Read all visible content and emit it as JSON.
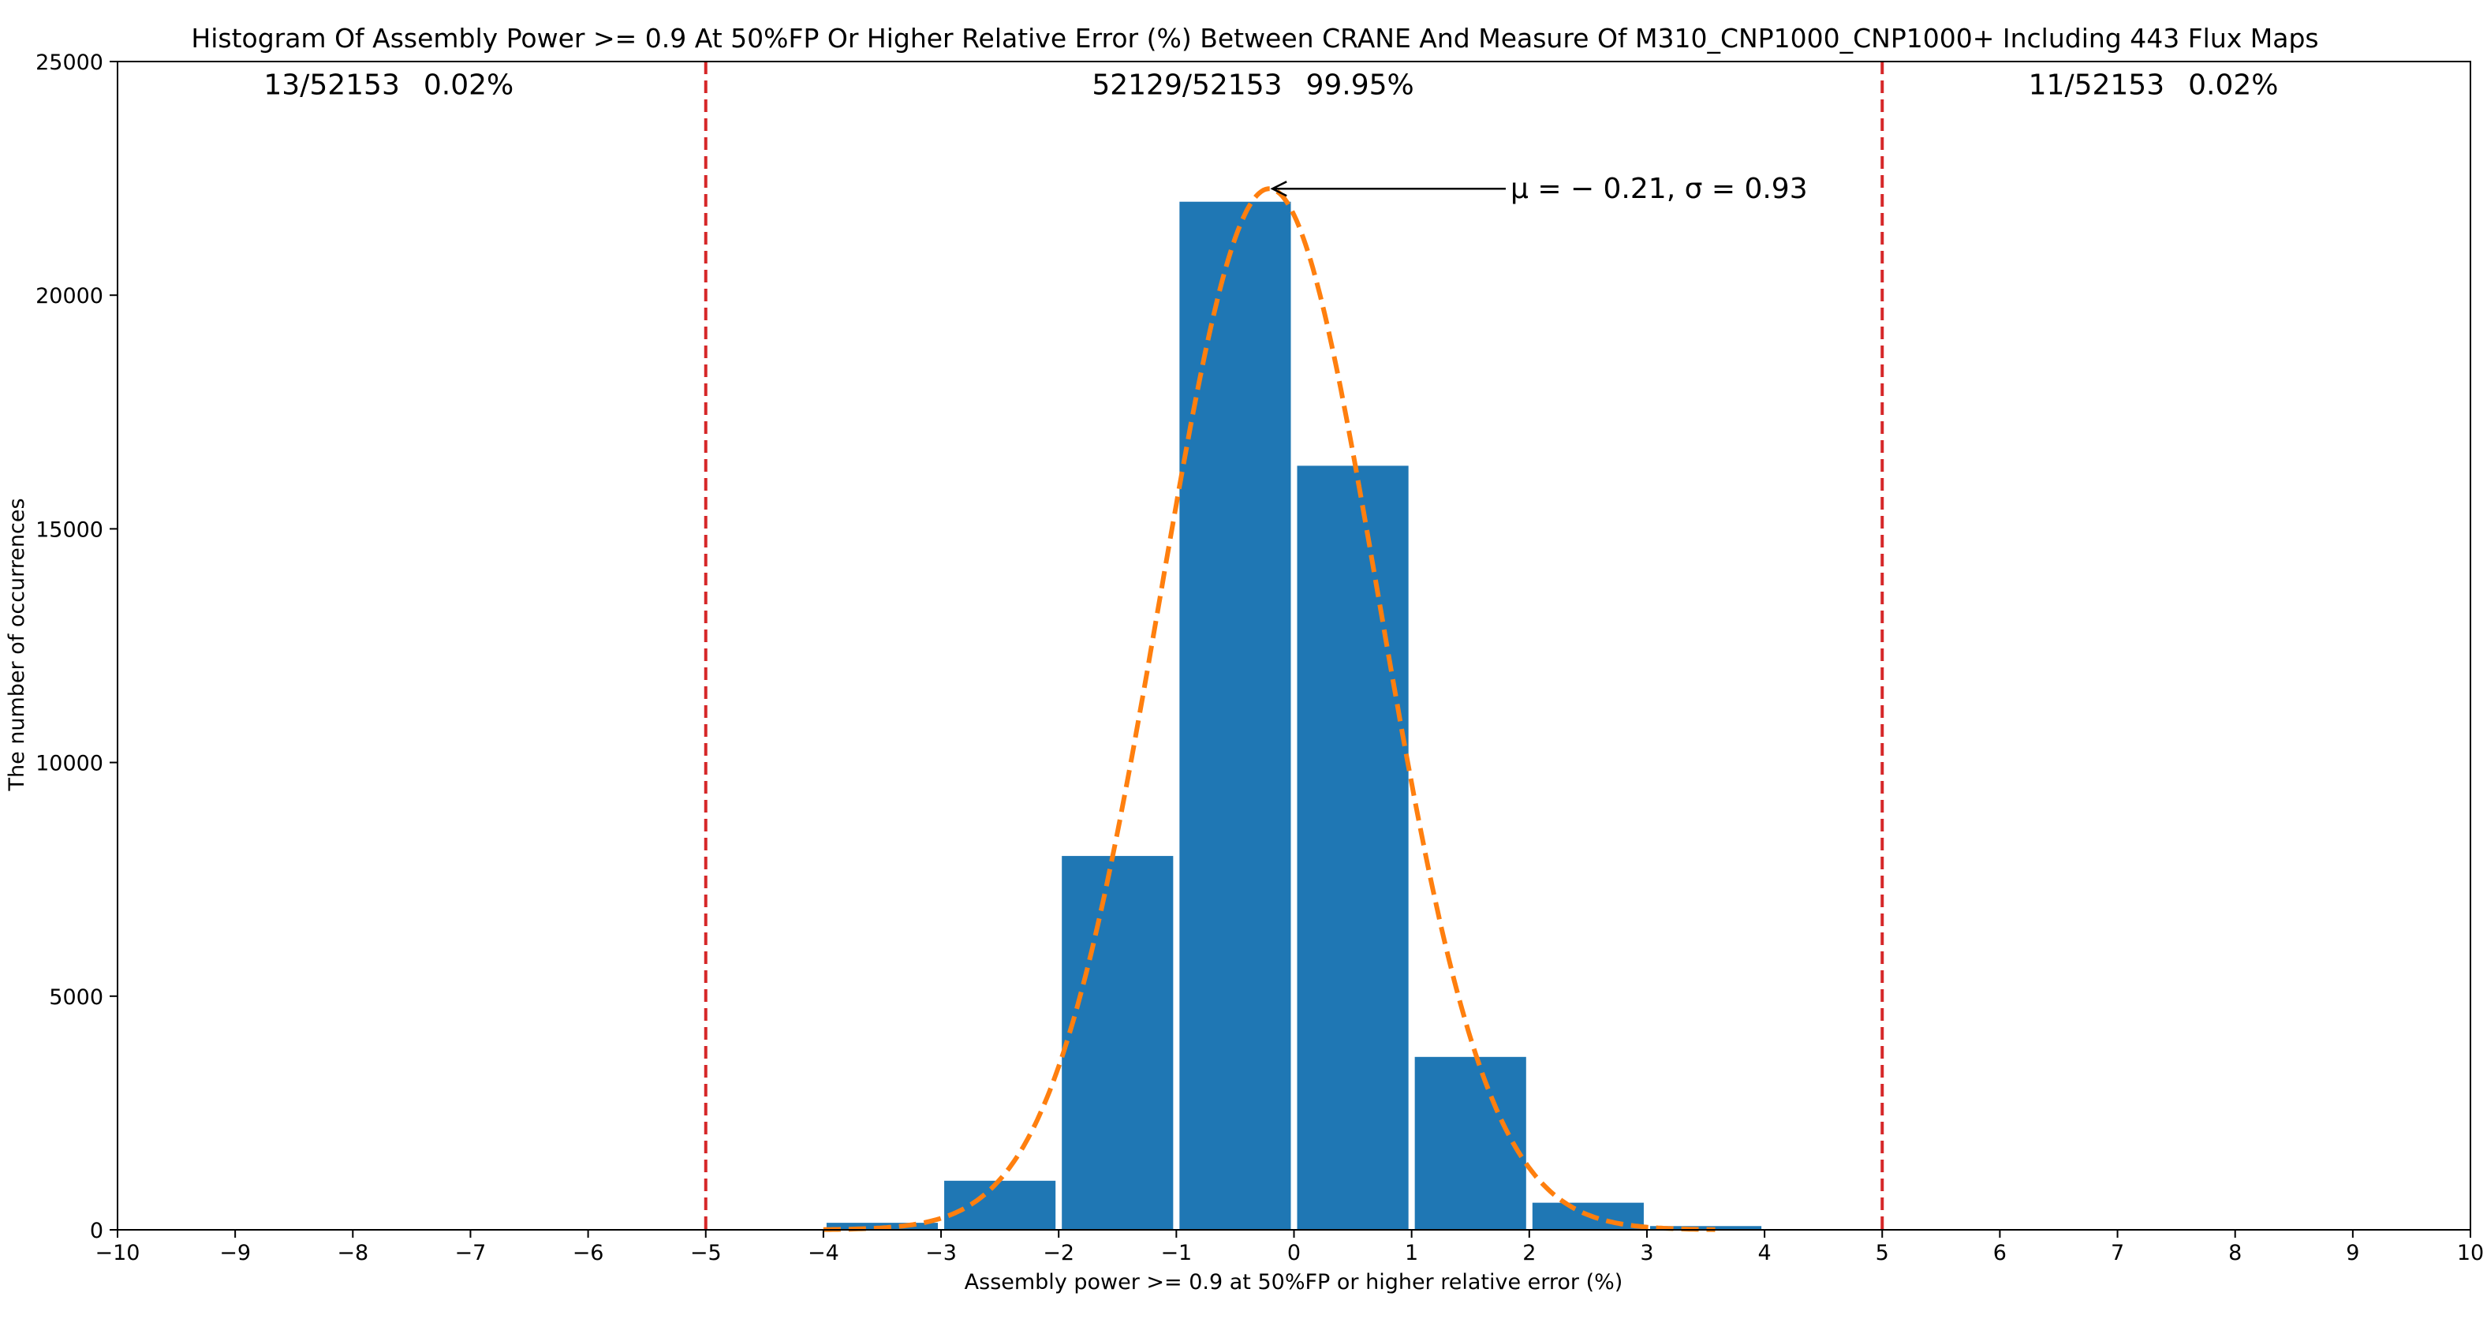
{
  "chart_data": {
    "type": "bar",
    "title": "Histogram Of Assembly Power >= 0.9 At 50%FP Or Higher Relative Error (%) Between CRANE And Measure Of M310_CNP1000_CNP1000+ Including 443 Flux Maps",
    "xlabel": "Assembly power >= 0.9 at 50%FP or higher relative error (%)",
    "ylabel": "The number of occurrences",
    "xlim": [
      -10,
      10
    ],
    "ylim": [
      0,
      25000
    ],
    "x_ticks": [
      "−10",
      "−9",
      "−8",
      "−7",
      "−6",
      "−5",
      "−4",
      "−3",
      "−2",
      "−1",
      "0",
      "1",
      "2",
      "3",
      "4",
      "5",
      "6",
      "7",
      "8",
      "9",
      "10"
    ],
    "y_ticks": [
      "0",
      "5000",
      "10000",
      "15000",
      "20000",
      "25000"
    ],
    "bin_edges": [
      -5,
      -4,
      -3,
      -2,
      -1,
      0,
      1,
      2,
      3,
      4,
      5
    ],
    "values": [
      13,
      150,
      1050,
      8000,
      22000,
      16350,
      3700,
      580,
      80,
      11
    ],
    "bar_color": "#1f77b4",
    "fit_curve": {
      "mu": -0.21,
      "sigma": 0.93,
      "color": "#ff7f0e",
      "style": "dashed"
    },
    "threshold_lines": [
      {
        "x": -5,
        "color": "#d62728",
        "style": "dashed"
      },
      {
        "x": 5,
        "color": "#d62728",
        "style": "dashed"
      }
    ],
    "region_labels": [
      {
        "count": "13/52153",
        "percent": "0.02%"
      },
      {
        "count": "52129/52153",
        "percent": "99.95%"
      },
      {
        "count": "11/52153",
        "percent": "0.02%"
      }
    ],
    "annotation": {
      "text": "μ = − 0.21, σ = 0.93",
      "point_x": -0.21
    },
    "grid": false,
    "legend": "none"
  }
}
